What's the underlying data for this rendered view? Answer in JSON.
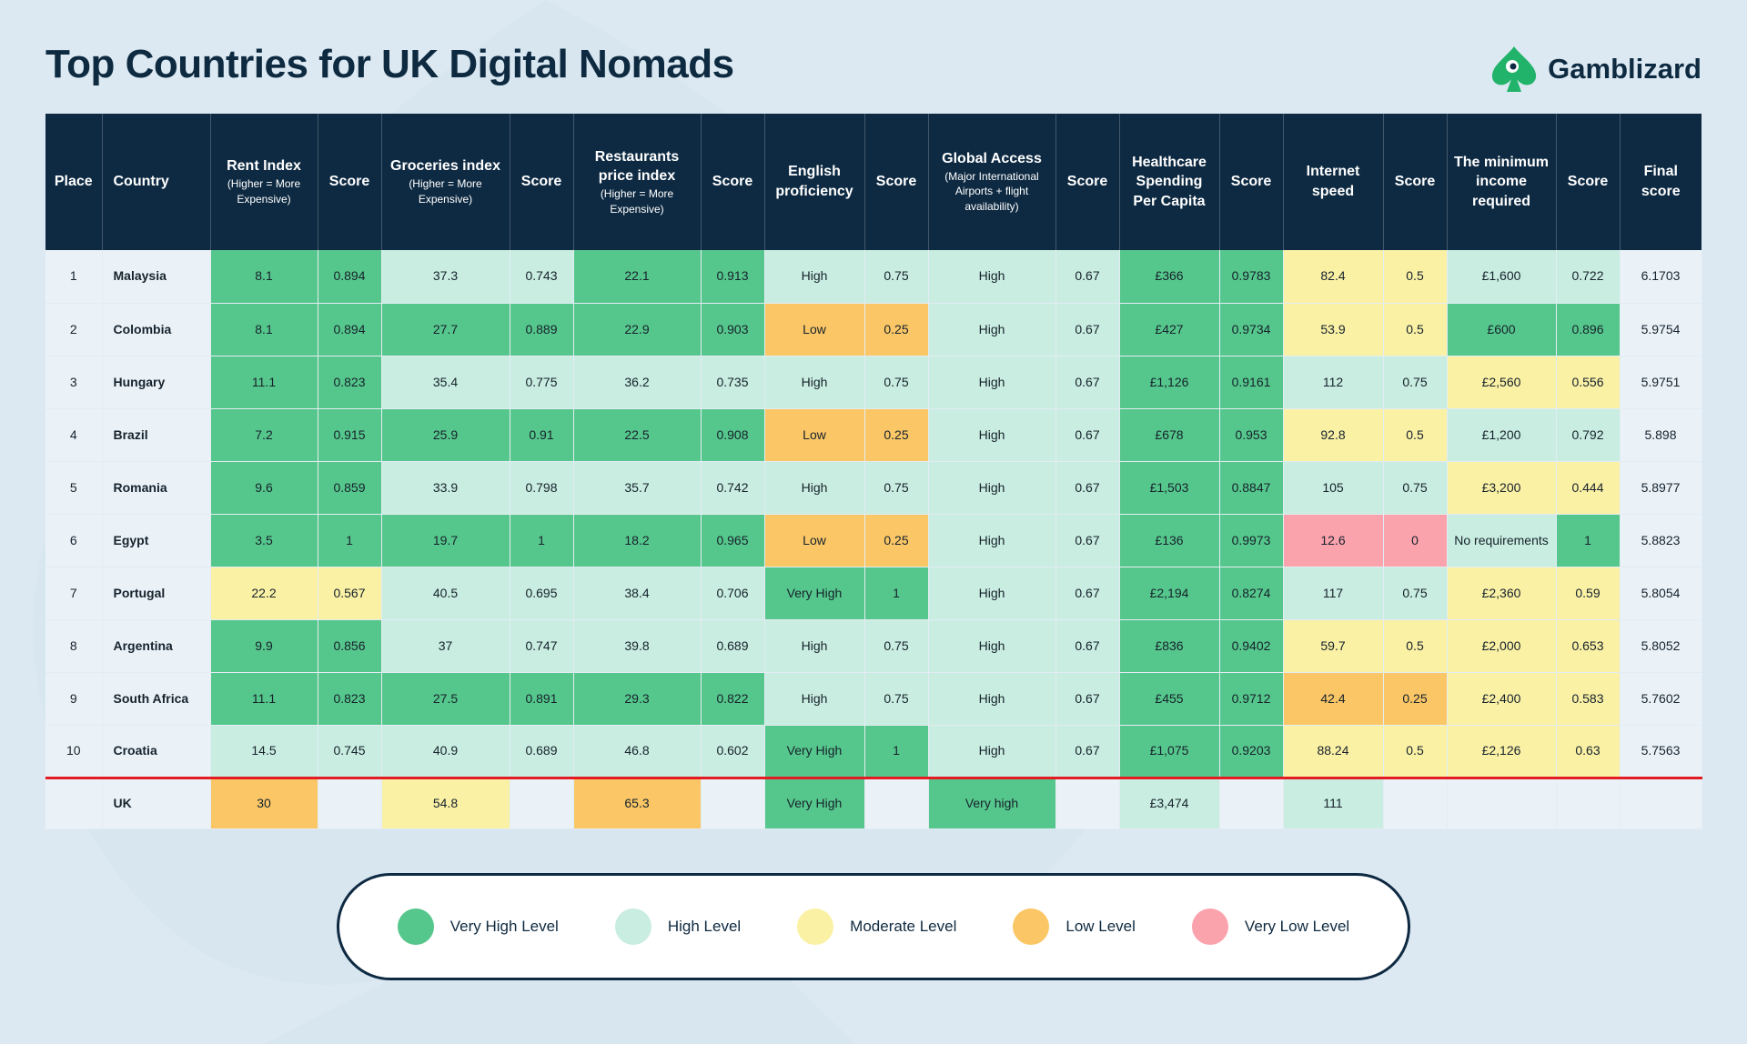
{
  "title": "Top Countries for UK Digital Nomads",
  "brand": {
    "name": "Gamblizard",
    "icon": "lizard-spade-logo"
  },
  "colors": {
    "very_high": "#56c78c",
    "high": "#c9ede0",
    "moderate": "#fbf1a5",
    "low": "#fbc766",
    "very_low": "#fba3ac",
    "neutral": "#eaf2f8",
    "header": "#0e2a42"
  },
  "columns": [
    {
      "title": "Place",
      "sub": ""
    },
    {
      "title": "Country",
      "sub": ""
    },
    {
      "title": "Rent Index",
      "sub": "(Higher = More Expensive)"
    },
    {
      "title": "Score",
      "sub": ""
    },
    {
      "title": "Groceries index",
      "sub": "(Higher = More Expensive)"
    },
    {
      "title": "Score",
      "sub": ""
    },
    {
      "title": "Restaurants price index",
      "sub": "(Higher = More Expensive)"
    },
    {
      "title": "Score",
      "sub": ""
    },
    {
      "title": "English proficiency",
      "sub": ""
    },
    {
      "title": "Score",
      "sub": ""
    },
    {
      "title": "Global Access",
      "sub": "(Major International Airports + flight availability)"
    },
    {
      "title": "Score",
      "sub": ""
    },
    {
      "title": "Healthcare Spending Per Capita",
      "sub": ""
    },
    {
      "title": "Score",
      "sub": ""
    },
    {
      "title": "Internet speed",
      "sub": ""
    },
    {
      "title": "Score",
      "sub": ""
    },
    {
      "title": "The minimum income required",
      "sub": ""
    },
    {
      "title": "Score",
      "sub": ""
    },
    {
      "title": "Final score",
      "sub": ""
    }
  ],
  "chart_data": {
    "type": "table",
    "rows": [
      {
        "place": "1",
        "country": "Malaysia",
        "cells": [
          "8.1",
          "0.894",
          "37.3",
          "0.743",
          "22.1",
          "0.913",
          "High",
          "0.75",
          "High",
          "0.67",
          "£366",
          "0.9783",
          "82.4",
          "0.5",
          "£1,600",
          "0.722",
          "6.1703"
        ],
        "levels": [
          "VH",
          "VH",
          "H",
          "H",
          "VH",
          "VH",
          "H",
          "H",
          "H",
          "H",
          "VH",
          "VH",
          "M",
          "M",
          "H",
          "H",
          "N"
        ]
      },
      {
        "place": "2",
        "country": "Colombia",
        "cells": [
          "8.1",
          "0.894",
          "27.7",
          "0.889",
          "22.9",
          "0.903",
          "Low",
          "0.25",
          "High",
          "0.67",
          "£427",
          "0.9734",
          "53.9",
          "0.5",
          "£600",
          "0.896",
          "5.9754"
        ],
        "levels": [
          "VH",
          "VH",
          "VH",
          "VH",
          "VH",
          "VH",
          "L",
          "L",
          "H",
          "H",
          "VH",
          "VH",
          "M",
          "M",
          "VH",
          "VH",
          "N"
        ]
      },
      {
        "place": "3",
        "country": "Hungary",
        "cells": [
          "11.1",
          "0.823",
          "35.4",
          "0.775",
          "36.2",
          "0.735",
          "High",
          "0.75",
          "High",
          "0.67",
          "£1,126",
          "0.9161",
          "112",
          "0.75",
          "£2,560",
          "0.556",
          "5.9751"
        ],
        "levels": [
          "VH",
          "VH",
          "H",
          "H",
          "H",
          "H",
          "H",
          "H",
          "H",
          "H",
          "VH",
          "VH",
          "H",
          "H",
          "M",
          "M",
          "N"
        ]
      },
      {
        "place": "4",
        "country": "Brazil",
        "cells": [
          "7.2",
          "0.915",
          "25.9",
          "0.91",
          "22.5",
          "0.908",
          "Low",
          "0.25",
          "High",
          "0.67",
          "£678",
          "0.953",
          "92.8",
          "0.5",
          "£1,200",
          "0.792",
          "5.898"
        ],
        "levels": [
          "VH",
          "VH",
          "VH",
          "VH",
          "VH",
          "VH",
          "L",
          "L",
          "H",
          "H",
          "VH",
          "VH",
          "M",
          "M",
          "H",
          "H",
          "N"
        ]
      },
      {
        "place": "5",
        "country": "Romania",
        "cells": [
          "9.6",
          "0.859",
          "33.9",
          "0.798",
          "35.7",
          "0.742",
          "High",
          "0.75",
          "High",
          "0.67",
          "£1,503",
          "0.8847",
          "105",
          "0.75",
          "£3,200",
          "0.444",
          "5.8977"
        ],
        "levels": [
          "VH",
          "VH",
          "H",
          "H",
          "H",
          "H",
          "H",
          "H",
          "H",
          "H",
          "VH",
          "VH",
          "H",
          "H",
          "M",
          "M",
          "N"
        ]
      },
      {
        "place": "6",
        "country": "Egypt",
        "cells": [
          "3.5",
          "1",
          "19.7",
          "1",
          "18.2",
          "0.965",
          "Low",
          "0.25",
          "High",
          "0.67",
          "£136",
          "0.9973",
          "12.6",
          "0",
          "No requirements",
          "1",
          "5.8823"
        ],
        "levels": [
          "VH",
          "VH",
          "VH",
          "VH",
          "VH",
          "VH",
          "L",
          "L",
          "H",
          "H",
          "VH",
          "VH",
          "VL",
          "VL",
          "H",
          "VH",
          "N"
        ]
      },
      {
        "place": "7",
        "country": "Portugal",
        "cells": [
          "22.2",
          "0.567",
          "40.5",
          "0.695",
          "38.4",
          "0.706",
          "Very High",
          "1",
          "High",
          "0.67",
          "£2,194",
          "0.8274",
          "117",
          "0.75",
          "£2,360",
          "0.59",
          "5.8054"
        ],
        "levels": [
          "M",
          "M",
          "H",
          "H",
          "H",
          "H",
          "VH",
          "VH",
          "H",
          "H",
          "VH",
          "VH",
          "H",
          "H",
          "M",
          "M",
          "N"
        ]
      },
      {
        "place": "8",
        "country": "Argentina",
        "cells": [
          "9.9",
          "0.856",
          "37",
          "0.747",
          "39.8",
          "0.689",
          "High",
          "0.75",
          "High",
          "0.67",
          "£836",
          "0.9402",
          "59.7",
          "0.5",
          "£2,000",
          "0.653",
          "5.8052"
        ],
        "levels": [
          "VH",
          "VH",
          "H",
          "H",
          "H",
          "H",
          "H",
          "H",
          "H",
          "H",
          "VH",
          "VH",
          "M",
          "M",
          "M",
          "M",
          "N"
        ]
      },
      {
        "place": "9",
        "country": "South Africa",
        "cells": [
          "11.1",
          "0.823",
          "27.5",
          "0.891",
          "29.3",
          "0.822",
          "High",
          "0.75",
          "High",
          "0.67",
          "£455",
          "0.9712",
          "42.4",
          "0.25",
          "£2,400",
          "0.583",
          "5.7602"
        ],
        "levels": [
          "VH",
          "VH",
          "VH",
          "VH",
          "VH",
          "VH",
          "H",
          "H",
          "H",
          "H",
          "VH",
          "VH",
          "L",
          "L",
          "M",
          "M",
          "N"
        ]
      },
      {
        "place": "10",
        "country": "Croatia",
        "cells": [
          "14.5",
          "0.745",
          "40.9",
          "0.689",
          "46.8",
          "0.602",
          "Very High",
          "1",
          "High",
          "0.67",
          "£1,075",
          "0.9203",
          "88.24",
          "0.5",
          "£2,126",
          "0.63",
          "5.7563"
        ],
        "levels": [
          "H",
          "H",
          "H",
          "H",
          "H",
          "H",
          "VH",
          "VH",
          "H",
          "H",
          "VH",
          "VH",
          "M",
          "M",
          "M",
          "M",
          "N"
        ]
      }
    ],
    "reference_row": {
      "place": "",
      "country": "UK",
      "cells": [
        "30",
        "",
        "54.8",
        "",
        "65.3",
        "",
        "Very High",
        "",
        "Very high",
        "",
        "£3,474",
        "",
        "111",
        "",
        "",
        "",
        ""
      ],
      "levels": [
        "L",
        "N",
        "M",
        "N",
        "L",
        "N",
        "VH",
        "N",
        "VH",
        "N",
        "H",
        "N",
        "H",
        "N",
        "N",
        "N",
        "N"
      ]
    }
  },
  "legend": [
    {
      "label": "Very High Level",
      "color": "#56c78c"
    },
    {
      "label": "High Level",
      "color": "#c9ede0"
    },
    {
      "label": "Moderate Level",
      "color": "#fbf1a5"
    },
    {
      "label": "Low Level",
      "color": "#fbc766"
    },
    {
      "label": "Very Low Level",
      "color": "#fba3ac"
    }
  ]
}
